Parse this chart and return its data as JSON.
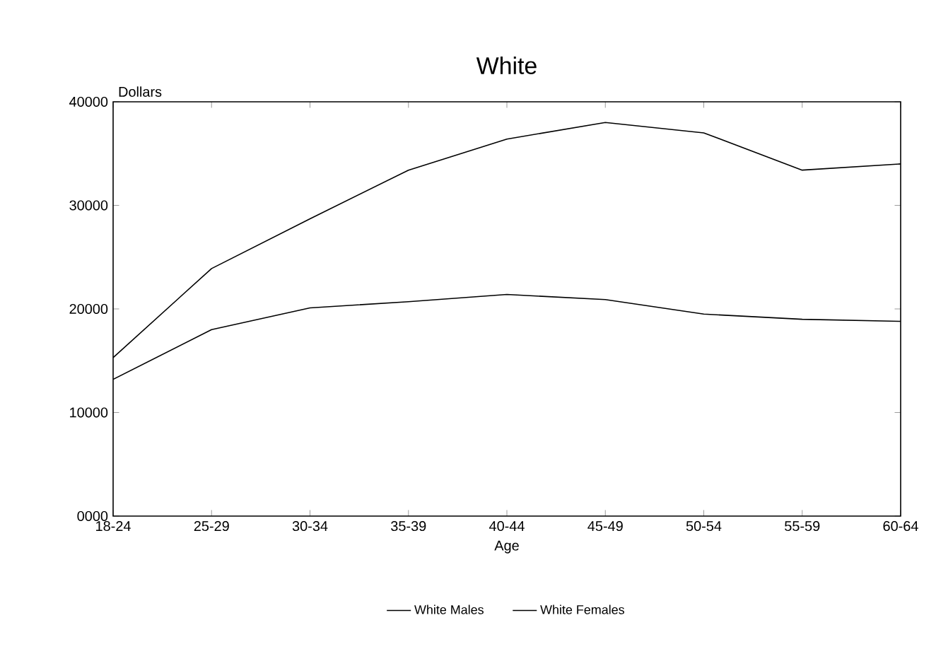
{
  "chart_data": {
    "type": "line",
    "title": "White",
    "xlabel": "Age",
    "ylabel": "Dollars",
    "categories": [
      "18-24",
      "25-29",
      "30-34",
      "35-39",
      "40-44",
      "45-49",
      "50-54",
      "55-59",
      "60-64"
    ],
    "series": [
      {
        "name": "White Males",
        "color": "#000000",
        "values": [
          15300,
          23900,
          28700,
          33400,
          36400,
          38000,
          37000,
          33400,
          34000
        ]
      },
      {
        "name": "White Females",
        "color": "#000000",
        "values": [
          13200,
          18000,
          20100,
          20700,
          21400,
          20900,
          19500,
          19000,
          18800
        ]
      }
    ],
    "ylim": [
      0,
      40000
    ],
    "yticks": [
      {
        "value": 0,
        "label": "0000"
      },
      10000,
      20000,
      30000,
      40000
    ],
    "legend": "bottom",
    "grid": false,
    "line_style": "solid"
  }
}
